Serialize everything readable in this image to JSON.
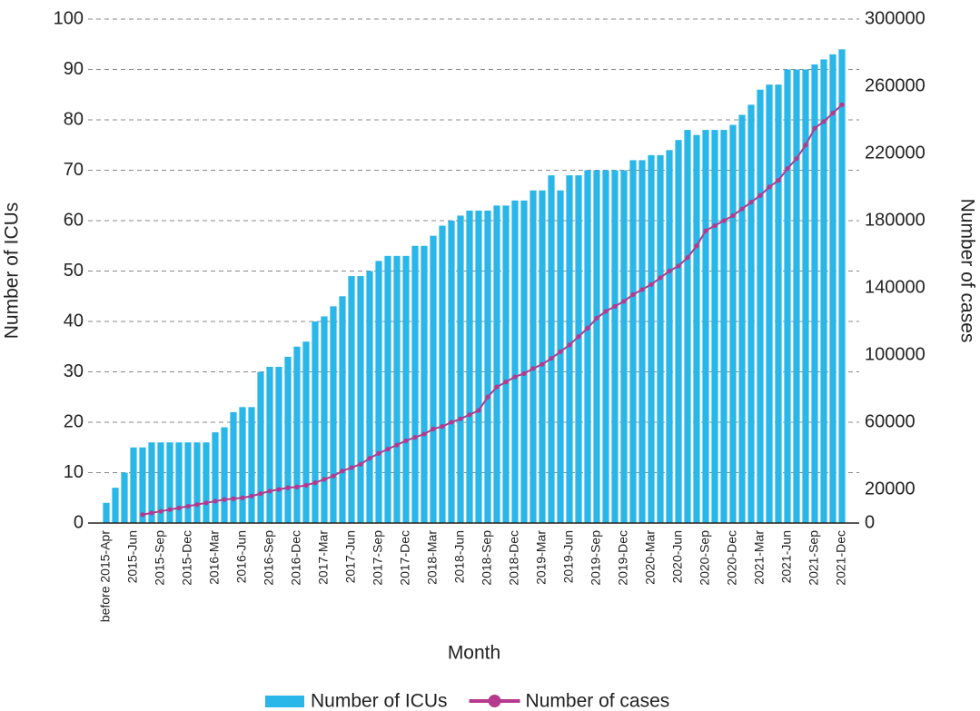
{
  "chart_data": {
    "type": "bar_line",
    "xlabel": "Month",
    "ylabel": "Number of ICUs",
    "y2label": "Number of cases",
    "categories": [
      "before 2015-Apr",
      null,
      null,
      "2015-Jun",
      null,
      null,
      "2015-Sep",
      null,
      null,
      "2015-Dec",
      null,
      null,
      "2016-Mar",
      null,
      null,
      "2016-Jun",
      null,
      null,
      "2016-Sep",
      null,
      null,
      "2016-Dec",
      null,
      null,
      "2017-Mar",
      null,
      null,
      "2017-Jun",
      null,
      null,
      "2017-Sep",
      null,
      null,
      "2017-Dec",
      null,
      null,
      "2018-Mar",
      null,
      null,
      "2018-Jun",
      null,
      null,
      "2018-Sep",
      null,
      null,
      "2018-Dec",
      null,
      null,
      "2019-Mar",
      null,
      null,
      "2019-Jun",
      null,
      null,
      "2019-Sep",
      null,
      null,
      "2019-Dec",
      null,
      null,
      "2020-Mar",
      null,
      null,
      "2020-Jun",
      null,
      null,
      "2020-Sep",
      null,
      null,
      "2020-Dec",
      null,
      null,
      "2021-Mar",
      null,
      null,
      "2021-Jun",
      null,
      null,
      "2021-Sep",
      null,
      null,
      "2021-Dec"
    ],
    "series": [
      {
        "name": "Number of ICUs",
        "type": "bar",
        "color": "#29b6e8",
        "values": [
          4,
          7,
          10,
          15,
          15,
          16,
          16,
          16,
          16,
          16,
          16,
          16,
          18,
          19,
          22,
          23,
          23,
          30,
          31,
          31,
          33,
          35,
          36,
          40,
          41,
          43,
          45,
          49,
          49,
          50,
          52,
          53,
          53,
          53,
          55,
          55,
          57,
          59,
          60,
          61,
          62,
          62,
          62,
          63,
          63,
          64,
          64,
          66,
          66,
          69,
          66,
          69,
          69,
          70,
          70,
          70,
          70,
          70,
          72,
          72,
          73,
          73,
          74,
          76,
          78,
          77,
          78,
          78,
          78,
          79,
          81,
          83,
          86,
          87,
          87,
          90,
          90,
          90,
          91,
          92,
          93,
          94
        ]
      },
      {
        "name": "Number of cases",
        "type": "line",
        "axis": "y2",
        "color": "#b5398c",
        "values": [
          null,
          null,
          null,
          null,
          5000,
          6000,
          7000,
          8000,
          9000,
          10000,
          11000,
          12000,
          13000,
          14000,
          14500,
          15000,
          16000,
          17500,
          19000,
          20000,
          21000,
          21500,
          22500,
          24000,
          26000,
          28000,
          31000,
          33000,
          35000,
          38500,
          41500,
          44000,
          46500,
          49000,
          51000,
          53000,
          56000,
          57500,
          60000,
          62000,
          64500,
          67000,
          75000,
          81000,
          84000,
          87000,
          89000,
          92000,
          94500,
          98000,
          102000,
          106000,
          111000,
          116000,
          122000,
          126000,
          129000,
          132000,
          136000,
          139000,
          142000,
          146000,
          150000,
          153000,
          158000,
          165000,
          174000,
          177000,
          180000,
          183000,
          187000,
          191000,
          195000,
          200000,
          204000,
          211000,
          217000,
          225000,
          235000,
          239000,
          244000,
          249000
        ]
      }
    ],
    "ylim": [
      0,
      100
    ],
    "yticks": [
      0,
      10,
      20,
      30,
      40,
      50,
      60,
      70,
      80,
      90,
      100
    ],
    "y2lim": [
      0,
      300000
    ],
    "y2ticks": [
      0,
      20000,
      60000,
      100000,
      140000,
      180000,
      220000,
      260000,
      300000
    ],
    "grid": true,
    "legend": "bottom"
  }
}
